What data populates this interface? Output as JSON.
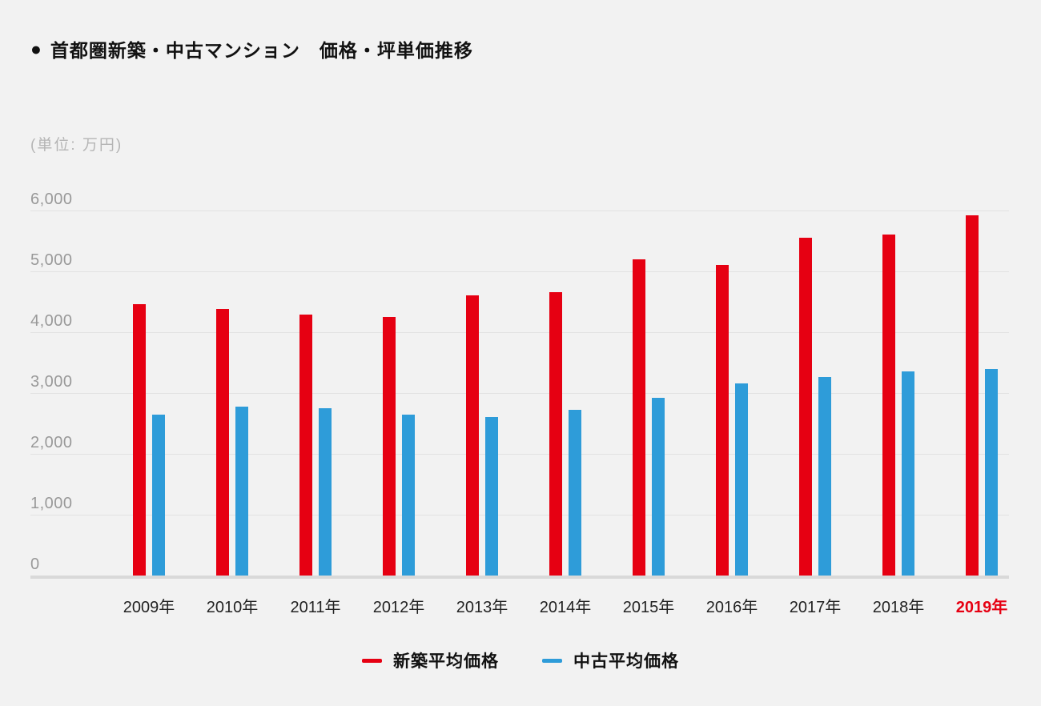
{
  "header": {
    "bullet": "●",
    "title": "首都圏新築・中古マンション　価格・坪単価推移",
    "unit_label": "(単位: 万円)"
  },
  "colors": {
    "background": "#f2f2f2",
    "new_series": "#e60012",
    "used_series": "#2e9cd9",
    "gridline": "#e2e2e2",
    "axis_baseline": "#d9d9d9",
    "ytick_text": "#999999",
    "xlabel_text": "#222222",
    "xlabel_highlight": "#e60012"
  },
  "chart_data": {
    "type": "bar",
    "title": "首都圏新築・中古マンション　価格・坪単価推移",
    "unit": "万円",
    "categories": [
      "2009年",
      "2010年",
      "2011年",
      "2012年",
      "2013年",
      "2014年",
      "2015年",
      "2016年",
      "2017年",
      "2018年",
      "2019年"
    ],
    "highlight_category": "2019年",
    "series": [
      {
        "name": "新築平均価格",
        "color": "#e60012",
        "values": [
          4460,
          4380,
          4290,
          4250,
          4600,
          4660,
          5200,
          5100,
          5550,
          5600,
          5920
        ]
      },
      {
        "name": "中古平均価格",
        "color": "#2e9cd9",
        "values": [
          2650,
          2770,
          2750,
          2640,
          2600,
          2730,
          2920,
          3160,
          3260,
          3350,
          3400
        ]
      }
    ],
    "ylim": [
      0,
      6000
    ],
    "ytick_step": 1000,
    "ytick_labels": [
      "0",
      "1,000",
      "2,000",
      "3,000",
      "4,000",
      "5,000",
      "6,000"
    ],
    "grid": true,
    "legend_position": "bottom"
  },
  "legend": {
    "items": [
      {
        "label": "新築平均価格",
        "color": "#e60012"
      },
      {
        "label": "中古平均価格",
        "color": "#2e9cd9"
      }
    ]
  }
}
